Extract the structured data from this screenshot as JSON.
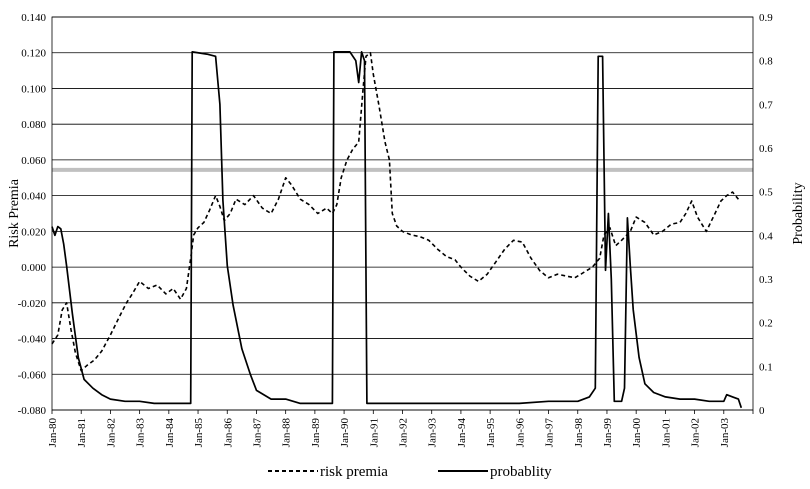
{
  "chart_data": {
    "type": "line",
    "title": "",
    "ylabel": "Risk Premia",
    "y2label": "Probability",
    "ylim": [
      -0.08,
      0.14
    ],
    "y2lim": [
      0,
      0.9
    ],
    "yticks": [
      "0.140",
      "0.120",
      "0.100",
      "0.080",
      "0.060",
      "0.040",
      "0.020",
      "0.000",
      "-0.020",
      "-0.040",
      "-0.060",
      "-0.080"
    ],
    "y2ticks": [
      "0.9",
      "0.8",
      "0.7",
      "0.6",
      "0.5",
      "0.4",
      "0.3",
      "0.2",
      "0.1",
      "0"
    ],
    "xticks": [
      "Jan-80",
      "Jan-81",
      "Jan-82",
      "Jan-83",
      "Jan-84",
      "Jan-85",
      "Jan-86",
      "Jan-87",
      "Jan-88",
      "Jan-89",
      "Jan-90",
      "Jan-91",
      "Jan-92",
      "Jan-93",
      "Jan-94",
      "Jan-95",
      "Jan-96",
      "Jan-97",
      "Jan-98",
      "Jan-99",
      "Jan-00",
      "Jan-01",
      "Jan-02",
      "Jan-03"
    ],
    "x_start_year": 1980,
    "reference_line_y2": 0.55,
    "grid": true,
    "legend_position": "bottom",
    "series": [
      {
        "name": "risk premia",
        "axis": "left",
        "style": "dashed",
        "points": [
          [
            1980.0,
            -0.043
          ],
          [
            1980.2,
            -0.038
          ],
          [
            1980.35,
            -0.024
          ],
          [
            1980.5,
            -0.02
          ],
          [
            1980.65,
            -0.035
          ],
          [
            1980.8,
            -0.048
          ],
          [
            1981.0,
            -0.058
          ],
          [
            1981.2,
            -0.055
          ],
          [
            1981.45,
            -0.052
          ],
          [
            1981.7,
            -0.047
          ],
          [
            1982.0,
            -0.038
          ],
          [
            1982.3,
            -0.028
          ],
          [
            1982.55,
            -0.02
          ],
          [
            1982.75,
            -0.015
          ],
          [
            1983.0,
            -0.008
          ],
          [
            1983.3,
            -0.012
          ],
          [
            1983.6,
            -0.01
          ],
          [
            1983.9,
            -0.015
          ],
          [
            1984.15,
            -0.012
          ],
          [
            1984.4,
            -0.018
          ],
          [
            1984.6,
            -0.012
          ],
          [
            1984.75,
            0.005
          ],
          [
            1984.85,
            0.018
          ],
          [
            1985.0,
            0.022
          ],
          [
            1985.2,
            0.025
          ],
          [
            1985.4,
            0.032
          ],
          [
            1985.6,
            0.04
          ],
          [
            1985.75,
            0.034
          ],
          [
            1985.9,
            0.026
          ],
          [
            1986.1,
            0.03
          ],
          [
            1986.3,
            0.038
          ],
          [
            1986.6,
            0.035
          ],
          [
            1986.9,
            0.04
          ],
          [
            1987.2,
            0.033
          ],
          [
            1987.5,
            0.03
          ],
          [
            1987.75,
            0.038
          ],
          [
            1988.0,
            0.05
          ],
          [
            1988.2,
            0.046
          ],
          [
            1988.5,
            0.038
          ],
          [
            1988.8,
            0.035
          ],
          [
            1989.1,
            0.03
          ],
          [
            1989.4,
            0.033
          ],
          [
            1989.6,
            0.03
          ],
          [
            1989.75,
            0.035
          ],
          [
            1989.9,
            0.05
          ],
          [
            1990.1,
            0.06
          ],
          [
            1990.3,
            0.066
          ],
          [
            1990.5,
            0.07
          ],
          [
            1990.65,
            0.1
          ],
          [
            1990.75,
            0.118
          ],
          [
            1990.9,
            0.12
          ],
          [
            1991.0,
            0.108
          ],
          [
            1991.2,
            0.09
          ],
          [
            1991.4,
            0.07
          ],
          [
            1991.55,
            0.06
          ],
          [
            1991.65,
            0.03
          ],
          [
            1991.8,
            0.023
          ],
          [
            1992.0,
            0.02
          ],
          [
            1992.3,
            0.018
          ],
          [
            1992.6,
            0.017
          ],
          [
            1992.9,
            0.015
          ],
          [
            1993.2,
            0.01
          ],
          [
            1993.5,
            0.006
          ],
          [
            1993.8,
            0.004
          ],
          [
            1994.0,
            0.0
          ],
          [
            1994.3,
            -0.005
          ],
          [
            1994.6,
            -0.008
          ],
          [
            1994.9,
            -0.004
          ],
          [
            1995.2,
            0.003
          ],
          [
            1995.5,
            0.01
          ],
          [
            1995.8,
            0.015
          ],
          [
            1996.1,
            0.014
          ],
          [
            1996.4,
            0.005
          ],
          [
            1996.7,
            -0.002
          ],
          [
            1997.0,
            -0.006
          ],
          [
            1997.3,
            -0.004
          ],
          [
            1997.6,
            -0.005
          ],
          [
            1997.9,
            -0.006
          ],
          [
            1998.2,
            -0.003
          ],
          [
            1998.5,
            0.0
          ],
          [
            1998.75,
            0.005
          ],
          [
            1998.9,
            0.018
          ],
          [
            1999.1,
            0.022
          ],
          [
            1999.3,
            0.012
          ],
          [
            1999.5,
            0.015
          ],
          [
            1999.8,
            0.02
          ],
          [
            2000.0,
            0.028
          ],
          [
            2000.3,
            0.025
          ],
          [
            2000.6,
            0.018
          ],
          [
            2000.9,
            0.02
          ],
          [
            2001.2,
            0.024
          ],
          [
            2001.5,
            0.025
          ],
          [
            2001.7,
            0.03
          ],
          [
            2001.9,
            0.037
          ],
          [
            2002.1,
            0.028
          ],
          [
            2002.4,
            0.02
          ],
          [
            2002.7,
            0.03
          ],
          [
            2002.9,
            0.037
          ],
          [
            2003.1,
            0.04
          ],
          [
            2003.3,
            0.042
          ],
          [
            2003.5,
            0.038
          ]
        ]
      },
      {
        "name": "probablity",
        "axis": "right",
        "style": "solid",
        "points": [
          [
            1980.0,
            0.42
          ],
          [
            1980.1,
            0.4
          ],
          [
            1980.2,
            0.42
          ],
          [
            1980.3,
            0.415
          ],
          [
            1980.4,
            0.38
          ],
          [
            1980.5,
            0.33
          ],
          [
            1980.7,
            0.22
          ],
          [
            1980.9,
            0.12
          ],
          [
            1981.1,
            0.07
          ],
          [
            1981.4,
            0.05
          ],
          [
            1981.7,
            0.035
          ],
          [
            1982.0,
            0.025
          ],
          [
            1982.5,
            0.02
          ],
          [
            1983.0,
            0.02
          ],
          [
            1983.5,
            0.015
          ],
          [
            1984.0,
            0.015
          ],
          [
            1984.75,
            0.015
          ],
          [
            1984.8,
            0.82
          ],
          [
            1985.3,
            0.815
          ],
          [
            1985.6,
            0.81
          ],
          [
            1985.75,
            0.7
          ],
          [
            1985.85,
            0.48
          ],
          [
            1986.0,
            0.33
          ],
          [
            1986.2,
            0.24
          ],
          [
            1986.5,
            0.14
          ],
          [
            1986.8,
            0.08
          ],
          [
            1987.0,
            0.045
          ],
          [
            1987.5,
            0.025
          ],
          [
            1988.0,
            0.025
          ],
          [
            1988.5,
            0.015
          ],
          [
            1989.0,
            0.015
          ],
          [
            1989.6,
            0.015
          ],
          [
            1989.65,
            0.82
          ],
          [
            1990.2,
            0.82
          ],
          [
            1990.4,
            0.8
          ],
          [
            1990.5,
            0.75
          ],
          [
            1990.6,
            0.82
          ],
          [
            1990.7,
            0.8
          ],
          [
            1990.78,
            0.015
          ],
          [
            1991.5,
            0.015
          ],
          [
            1992.0,
            0.015
          ],
          [
            1993.0,
            0.015
          ],
          [
            1994.0,
            0.015
          ],
          [
            1995.0,
            0.015
          ],
          [
            1996.0,
            0.015
          ],
          [
            1997.0,
            0.02
          ],
          [
            1998.0,
            0.02
          ],
          [
            1998.4,
            0.03
          ],
          [
            1998.6,
            0.05
          ],
          [
            1998.7,
            0.81
          ],
          [
            1998.85,
            0.81
          ],
          [
            1998.95,
            0.32
          ],
          [
            1999.05,
            0.45
          ],
          [
            1999.15,
            0.3
          ],
          [
            1999.25,
            0.02
          ],
          [
            1999.5,
            0.02
          ],
          [
            1999.6,
            0.05
          ],
          [
            1999.7,
            0.44
          ],
          [
            1999.8,
            0.33
          ],
          [
            1999.9,
            0.23
          ],
          [
            2000.1,
            0.12
          ],
          [
            2000.3,
            0.06
          ],
          [
            2000.6,
            0.04
          ],
          [
            2001.0,
            0.03
          ],
          [
            2001.5,
            0.025
          ],
          [
            2002.0,
            0.025
          ],
          [
            2002.5,
            0.02
          ],
          [
            2003.0,
            0.02
          ],
          [
            2003.1,
            0.035
          ],
          [
            2003.3,
            0.03
          ],
          [
            2003.5,
            0.025
          ],
          [
            2003.6,
            0.005
          ]
        ]
      }
    ]
  },
  "legend": {
    "items": [
      {
        "label": "risk premia",
        "style": "dashed"
      },
      {
        "label": "probablity",
        "style": "solid"
      }
    ]
  },
  "colors": {
    "line": "#000000",
    "grid": "#000000",
    "reference_line": "#c0c0c0",
    "background": "#ffffff"
  }
}
